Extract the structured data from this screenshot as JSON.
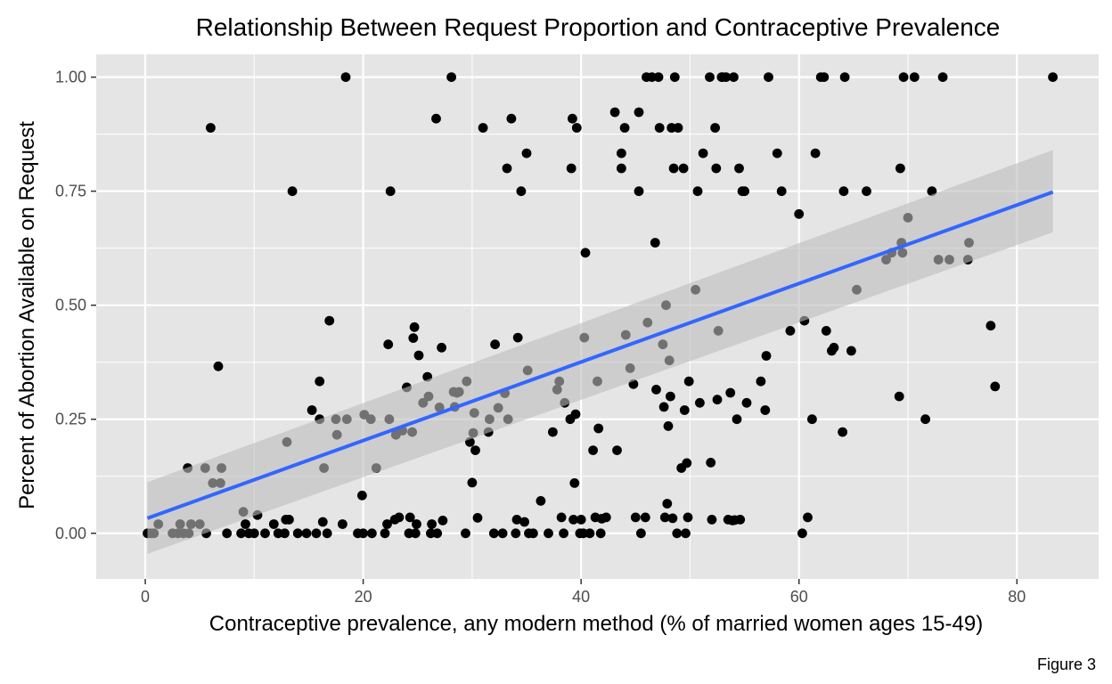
{
  "chart_data": {
    "type": "scatter",
    "title": "Relationship Between Request Proportion and Contraceptive Prevalence",
    "xlabel": "Contraceptive prevalence, any modern method (% of married women ages 15-49)",
    "ylabel": "Percent of Abortion Available on Request",
    "caption": "Figure 3",
    "xlim": [
      -4.5,
      87.5
    ],
    "ylim": [
      -0.1,
      1.05
    ],
    "x_ticks": [
      0,
      20,
      40,
      60,
      80
    ],
    "x_tick_labels": [
      "0",
      "20",
      "40",
      "60",
      "80"
    ],
    "y_ticks": [
      0,
      0.25,
      0.5,
      0.75,
      1
    ],
    "y_tick_labels": [
      "0.00",
      "0.25",
      "0.50",
      "0.75",
      "1.00"
    ],
    "grid": true,
    "legend": "none",
    "colors": {
      "panel": "#e5e5e5",
      "grid": "#ffffff",
      "points": "#000000",
      "fit_line": "#3366ff",
      "confidence_band": "#bdbdbd"
    },
    "trend_line": {
      "method": "linear",
      "x": [
        0.2,
        83.3
      ],
      "y": [
        0.033,
        0.748
      ],
      "ci_lower": [
        -0.045,
        0.66
      ],
      "ci_upper": [
        0.112,
        0.84
      ]
    },
    "points": [
      [
        0.2,
        0.0
      ],
      [
        0.5,
        0.0
      ],
      [
        0.8,
        0.0
      ],
      [
        1.2,
        0.02
      ],
      [
        2.5,
        0.0
      ],
      [
        3.0,
        0.0
      ],
      [
        3.2,
        0.02
      ],
      [
        3.5,
        0.0
      ],
      [
        4.0,
        0.0
      ],
      [
        3.9,
        0.143
      ],
      [
        4.2,
        0.02
      ],
      [
        5.0,
        0.02
      ],
      [
        5.5,
        0.143
      ],
      [
        5.6,
        0.0
      ],
      [
        6.2,
        0.11
      ],
      [
        6.9,
        0.11
      ],
      [
        7.0,
        0.143
      ],
      [
        6.0,
        0.889
      ],
      [
        6.7,
        0.366
      ],
      [
        7.5,
        0.0
      ],
      [
        8.8,
        0.0
      ],
      [
        9.0,
        0.047
      ],
      [
        9.2,
        0.02
      ],
      [
        9.5,
        0.0
      ],
      [
        10.0,
        0.0
      ],
      [
        10.3,
        0.04
      ],
      [
        11.0,
        0.0
      ],
      [
        11.8,
        0.02
      ],
      [
        12.2,
        0.0
      ],
      [
        12.8,
        0.0
      ],
      [
        12.9,
        0.03
      ],
      [
        13.2,
        0.03
      ],
      [
        13.0,
        0.2
      ],
      [
        13.5,
        0.75
      ],
      [
        14.0,
        0.0
      ],
      [
        14.8,
        0.0
      ],
      [
        15.7,
        0.0
      ],
      [
        15.3,
        0.27
      ],
      [
        16.0,
        0.333
      ],
      [
        16.0,
        0.25
      ],
      [
        16.4,
        0.143
      ],
      [
        16.3,
        0.025
      ],
      [
        16.7,
        0.0
      ],
      [
        16.9,
        0.466
      ],
      [
        17.5,
        0.25
      ],
      [
        17.6,
        0.216
      ],
      [
        18.1,
        0.02
      ],
      [
        18.5,
        0.25
      ],
      [
        18.4,
        1.0
      ],
      [
        19.5,
        0.0
      ],
      [
        19.9,
        0.083
      ],
      [
        20.1,
        0.26
      ],
      [
        20.0,
        0.0
      ],
      [
        20.7,
        0.25
      ],
      [
        20.8,
        0.0
      ],
      [
        21.2,
        0.143
      ],
      [
        22.0,
        0.0
      ],
      [
        22.2,
        0.02
      ],
      [
        22.3,
        0.414
      ],
      [
        22.4,
        0.25
      ],
      [
        22.5,
        0.75
      ],
      [
        22.9,
        0.03
      ],
      [
        23.0,
        0.216
      ],
      [
        23.3,
        0.035
      ],
      [
        23.6,
        0.225
      ],
      [
        24.0,
        0.32
      ],
      [
        24.2,
        0.0
      ],
      [
        24.5,
        0.222
      ],
      [
        24.3,
        0.035
      ],
      [
        24.6,
        0.428
      ],
      [
        24.7,
        0.452
      ],
      [
        24.8,
        0.0
      ],
      [
        24.9,
        0.02
      ],
      [
        25.1,
        0.39
      ],
      [
        25.5,
        0.286
      ],
      [
        25.9,
        0.343
      ],
      [
        26.0,
        0.3
      ],
      [
        26.2,
        0.0
      ],
      [
        26.3,
        0.02
      ],
      [
        26.7,
        0.909
      ],
      [
        26.8,
        0.0
      ],
      [
        27.0,
        0.276
      ],
      [
        27.2,
        0.407
      ],
      [
        27.3,
        0.028
      ],
      [
        28.1,
        1.0
      ],
      [
        28.3,
        0.31
      ],
      [
        28.4,
        0.277
      ],
      [
        28.6,
        0.308
      ],
      [
        28.8,
        0.31
      ],
      [
        29.4,
        0.0
      ],
      [
        29.5,
        0.333
      ],
      [
        29.8,
        0.2
      ],
      [
        30.0,
        0.111
      ],
      [
        30.1,
        0.22
      ],
      [
        30.2,
        0.264
      ],
      [
        30.3,
        0.182
      ],
      [
        30.5,
        0.034
      ],
      [
        31.0,
        0.889
      ],
      [
        31.5,
        0.222
      ],
      [
        31.6,
        0.25
      ],
      [
        32.0,
        0.0
      ],
      [
        32.1,
        0.414
      ],
      [
        32.4,
        0.275
      ],
      [
        32.8,
        0.0
      ],
      [
        33.0,
        0.307
      ],
      [
        33.2,
        0.8
      ],
      [
        33.3,
        0.25
      ],
      [
        33.6,
        0.909
      ],
      [
        34.0,
        0.0
      ],
      [
        34.1,
        0.03
      ],
      [
        34.2,
        0.429
      ],
      [
        34.5,
        0.75
      ],
      [
        34.8,
        0.025
      ],
      [
        35.0,
        0.833
      ],
      [
        35.1,
        0.357
      ],
      [
        35.2,
        0.0
      ],
      [
        35.6,
        0.0
      ],
      [
        36.3,
        0.071
      ],
      [
        37.0,
        0.0
      ],
      [
        37.4,
        0.222
      ],
      [
        37.8,
        0.315
      ],
      [
        38.0,
        0.333
      ],
      [
        38.2,
        0.035
      ],
      [
        38.4,
        0.0
      ],
      [
        38.5,
        0.286
      ],
      [
        39.0,
        0.25
      ],
      [
        39.1,
        0.8
      ],
      [
        39.2,
        0.909
      ],
      [
        39.3,
        0.03
      ],
      [
        39.4,
        0.11
      ],
      [
        39.5,
        0.261
      ],
      [
        39.6,
        0.889
      ],
      [
        39.9,
        0.0
      ],
      [
        40.0,
        0.03
      ],
      [
        40.2,
        0.0
      ],
      [
        40.3,
        0.429
      ],
      [
        40.4,
        0.615
      ],
      [
        40.8,
        0.0
      ],
      [
        41.1,
        0.182
      ],
      [
        41.3,
        0.035
      ],
      [
        41.5,
        0.333
      ],
      [
        41.6,
        0.23
      ],
      [
        41.8,
        0.0
      ],
      [
        41.9,
        0.032
      ],
      [
        42.3,
        0.035
      ],
      [
        43.1,
        0.923
      ],
      [
        43.3,
        0.182
      ],
      [
        43.7,
        0.833
      ],
      [
        43.7,
        0.8
      ],
      [
        44.0,
        0.889
      ],
      [
        44.1,
        0.435
      ],
      [
        44.5,
        0.362
      ],
      [
        44.8,
        0.327
      ],
      [
        45.0,
        0.035
      ],
      [
        45.3,
        0.923
      ],
      [
        45.3,
        0.75
      ],
      [
        45.5,
        0.0
      ],
      [
        45.9,
        0.035
      ],
      [
        46.1,
        0.462
      ],
      [
        46.0,
        1.0
      ],
      [
        46.5,
        1.0
      ],
      [
        46.8,
        0.637
      ],
      [
        46.9,
        0.315
      ],
      [
        47.1,
        1.0
      ],
      [
        47.2,
        0.889
      ],
      [
        47.5,
        0.414
      ],
      [
        47.6,
        0.277
      ],
      [
        47.7,
        0.035
      ],
      [
        47.8,
        0.5
      ],
      [
        47.9,
        0.065
      ],
      [
        48.0,
        0.235
      ],
      [
        48.1,
        0.379
      ],
      [
        48.2,
        0.3
      ],
      [
        48.3,
        0.889
      ],
      [
        48.4,
        0.033
      ],
      [
        48.5,
        0.8
      ],
      [
        48.6,
        1.0
      ],
      [
        48.8,
        0.0
      ],
      [
        48.9,
        0.889
      ],
      [
        49.2,
        0.143
      ],
      [
        49.4,
        0.8
      ],
      [
        49.5,
        0.27
      ],
      [
        49.6,
        0.0
      ],
      [
        49.7,
        0.154
      ],
      [
        49.8,
        0.035
      ],
      [
        49.9,
        0.333
      ],
      [
        50.5,
        0.534
      ],
      [
        50.7,
        0.75
      ],
      [
        50.9,
        0.286
      ],
      [
        51.2,
        0.833
      ],
      [
        51.8,
        1.0
      ],
      [
        51.9,
        0.155
      ],
      [
        52.0,
        0.03
      ],
      [
        52.3,
        0.889
      ],
      [
        52.4,
        0.8
      ],
      [
        52.5,
        0.293
      ],
      [
        52.6,
        0.444
      ],
      [
        52.9,
        1.0
      ],
      [
        53.0,
        1.0
      ],
      [
        53.3,
        1.0
      ],
      [
        53.5,
        0.03
      ],
      [
        53.7,
        0.308
      ],
      [
        53.9,
        0.028
      ],
      [
        54.0,
        1.0
      ],
      [
        54.1,
        0.029
      ],
      [
        54.3,
        0.25
      ],
      [
        54.5,
        0.8
      ],
      [
        54.6,
        0.03
      ],
      [
        54.8,
        0.75
      ],
      [
        55.0,
        0.75
      ],
      [
        55.2,
        0.286
      ],
      [
        56.5,
        0.333
      ],
      [
        56.9,
        0.27
      ],
      [
        57.0,
        0.389
      ],
      [
        57.2,
        1.0
      ],
      [
        58.0,
        0.833
      ],
      [
        58.4,
        0.75
      ],
      [
        59.2,
        0.444
      ],
      [
        60.0,
        0.7
      ],
      [
        60.3,
        0.0
      ],
      [
        60.5,
        0.466
      ],
      [
        60.8,
        0.035
      ],
      [
        61.2,
        0.25
      ],
      [
        61.5,
        0.833
      ],
      [
        62.0,
        1.0
      ],
      [
        62.3,
        1.0
      ],
      [
        62.5,
        0.444
      ],
      [
        63.0,
        0.4
      ],
      [
        63.2,
        0.407
      ],
      [
        64.0,
        0.222
      ],
      [
        64.1,
        0.75
      ],
      [
        64.2,
        1.0
      ],
      [
        64.8,
        0.4
      ],
      [
        65.3,
        0.534
      ],
      [
        66.2,
        0.75
      ],
      [
        68.0,
        0.6
      ],
      [
        68.5,
        0.615
      ],
      [
        69.2,
        0.3
      ],
      [
        69.3,
        0.8
      ],
      [
        69.4,
        0.637
      ],
      [
        69.5,
        0.615
      ],
      [
        69.6,
        1.0
      ],
      [
        70.0,
        0.692
      ],
      [
        70.6,
        1.0
      ],
      [
        71.6,
        0.25
      ],
      [
        72.2,
        0.75
      ],
      [
        72.8,
        0.6
      ],
      [
        73.2,
        1.0
      ],
      [
        73.8,
        0.6
      ],
      [
        75.5,
        0.6
      ],
      [
        75.6,
        0.637
      ],
      [
        77.6,
        0.455
      ],
      [
        78.0,
        0.322
      ],
      [
        83.3,
        1.0
      ]
    ]
  }
}
